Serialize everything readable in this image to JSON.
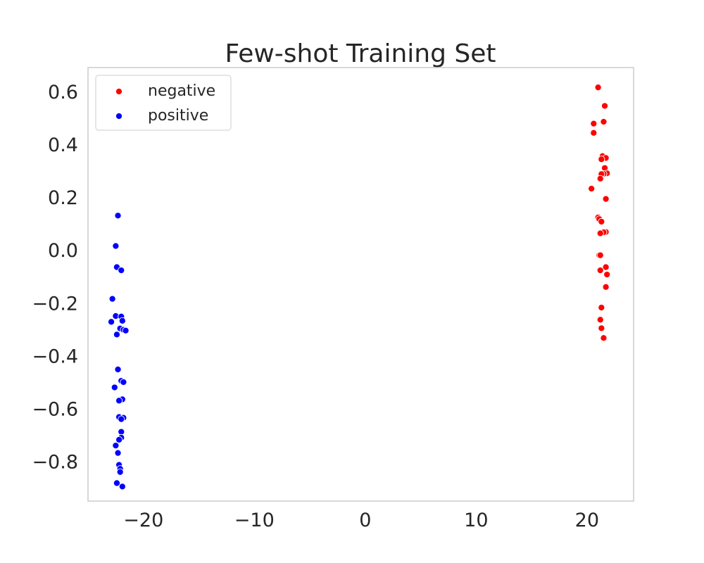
{
  "chart_data": {
    "type": "scatter",
    "title": "Few-shot Training Set",
    "xlabel": "",
    "ylabel": "",
    "xlim": [
      -25,
      24.2
    ],
    "ylim": [
      -0.95,
      0.69
    ],
    "xticks": [
      -20,
      -10,
      0,
      10,
      20
    ],
    "xtick_labels": [
      "−20",
      "−10",
      "0",
      "10",
      "20"
    ],
    "yticks": [
      0.6,
      0.4,
      0.2,
      0.0,
      -0.2,
      -0.4,
      -0.6,
      -0.8
    ],
    "ytick_labels": [
      "0.6",
      "0.4",
      "0.2",
      "0.0",
      "−0.2",
      "−0.4",
      "−0.6",
      "−0.8"
    ],
    "grid": false,
    "legend": {
      "placement": "top-left"
    },
    "series": [
      {
        "name": "negative",
        "color": "#ff0000",
        "points": [
          [
            21.0,
            0.615
          ],
          [
            21.6,
            0.545
          ],
          [
            21.5,
            0.485
          ],
          [
            20.6,
            0.478
          ],
          [
            20.6,
            0.443
          ],
          [
            21.4,
            0.355
          ],
          [
            21.7,
            0.348
          ],
          [
            21.3,
            0.343
          ],
          [
            21.6,
            0.31
          ],
          [
            21.8,
            0.29
          ],
          [
            21.5,
            0.288
          ],
          [
            21.3,
            0.287
          ],
          [
            21.2,
            0.27
          ],
          [
            20.4,
            0.232
          ],
          [
            21.7,
            0.193
          ],
          [
            21.0,
            0.123
          ],
          [
            21.1,
            0.117
          ],
          [
            21.3,
            0.107
          ],
          [
            21.7,
            0.068
          ],
          [
            21.5,
            0.067
          ],
          [
            21.2,
            0.063
          ],
          [
            21.1,
            -0.02
          ],
          [
            21.2,
            -0.02
          ],
          [
            21.7,
            -0.065
          ],
          [
            21.2,
            -0.077
          ],
          [
            21.8,
            -0.093
          ],
          [
            21.7,
            -0.14
          ],
          [
            21.3,
            -0.218
          ],
          [
            21.2,
            -0.264
          ],
          [
            21.3,
            -0.296
          ],
          [
            21.5,
            -0.333
          ]
        ]
      },
      {
        "name": "positive",
        "color": "#0000ff",
        "points": [
          [
            -22.3,
            0.13
          ],
          [
            -22.5,
            0.015
          ],
          [
            -22.4,
            -0.065
          ],
          [
            -22.0,
            -0.077
          ],
          [
            -22.8,
            -0.185
          ],
          [
            -22.5,
            -0.25
          ],
          [
            -22.0,
            -0.252
          ],
          [
            -21.9,
            -0.268
          ],
          [
            -22.9,
            -0.272
          ],
          [
            -22.1,
            -0.297
          ],
          [
            -21.8,
            -0.302
          ],
          [
            -21.6,
            -0.305
          ],
          [
            -22.4,
            -0.32
          ],
          [
            -22.3,
            -0.452
          ],
          [
            -22.0,
            -0.495
          ],
          [
            -21.8,
            -0.5
          ],
          [
            -22.6,
            -0.52
          ],
          [
            -21.9,
            -0.565
          ],
          [
            -22.2,
            -0.57
          ],
          [
            -22.2,
            -0.632
          ],
          [
            -21.8,
            -0.635
          ],
          [
            -22.0,
            -0.64
          ],
          [
            -22.0,
            -0.688
          ],
          [
            -22.0,
            -0.71
          ],
          [
            -22.2,
            -0.718
          ],
          [
            -22.5,
            -0.74
          ],
          [
            -22.3,
            -0.768
          ],
          [
            -22.2,
            -0.813
          ],
          [
            -22.1,
            -0.828
          ],
          [
            -22.1,
            -0.84
          ],
          [
            -22.4,
            -0.882
          ],
          [
            -21.9,
            -0.895
          ]
        ]
      }
    ]
  }
}
